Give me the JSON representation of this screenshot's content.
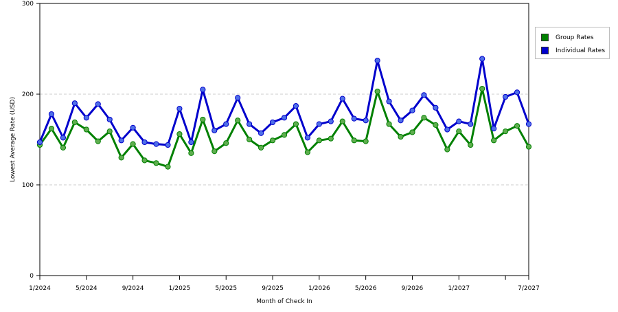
{
  "chart_data": {
    "type": "line",
    "title": "",
    "xlabel": "Month of Check In",
    "ylabel": "Lowest Average Rate (USD)",
    "ylim": [
      0,
      300
    ],
    "yticks": [
      "0",
      "100",
      "200",
      "300"
    ],
    "x_tick_labels": [
      {
        "index": 0,
        "label": "1/2024"
      },
      {
        "index": 4,
        "label": "5/2024"
      },
      {
        "index": 8,
        "label": "9/2024"
      },
      {
        "index": 12,
        "label": "1/2025"
      },
      {
        "index": 16,
        "label": "5/2025"
      },
      {
        "index": 20,
        "label": "9/2025"
      },
      {
        "index": 24,
        "label": "1/2026"
      },
      {
        "index": 28,
        "label": "5/2026"
      },
      {
        "index": 32,
        "label": "9/2026"
      },
      {
        "index": 36,
        "label": "1/2027"
      },
      {
        "index": 40,
        "label": ""
      },
      {
        "index": 42,
        "label": "7/2027"
      }
    ],
    "x_months": 43,
    "grid": true,
    "legend_position": "right",
    "series": [
      {
        "name": "Group Rates",
        "color": "#008000",
        "values": [
          144,
          162,
          141,
          169,
          161,
          148,
          159,
          130,
          145,
          127,
          124,
          120,
          156,
          135,
          172,
          137,
          146,
          171,
          150,
          141,
          149,
          155,
          167,
          136,
          149,
          151,
          170,
          149,
          148,
          203,
          167,
          153,
          158,
          174,
          166,
          139,
          159,
          144,
          206,
          149,
          159,
          165,
          142
        ]
      },
      {
        "name": "Individual Rates",
        "color": "#0000cc",
        "values": [
          147,
          178,
          152,
          190,
          174,
          189,
          172,
          149,
          163,
          147,
          145,
          144,
          184,
          147,
          205,
          160,
          167,
          196,
          167,
          157,
          169,
          174,
          187,
          152,
          167,
          170,
          195,
          173,
          171,
          237,
          192,
          171,
          182,
          199,
          185,
          161,
          170,
          167,
          239,
          162,
          197,
          202,
          167
        ]
      }
    ]
  }
}
